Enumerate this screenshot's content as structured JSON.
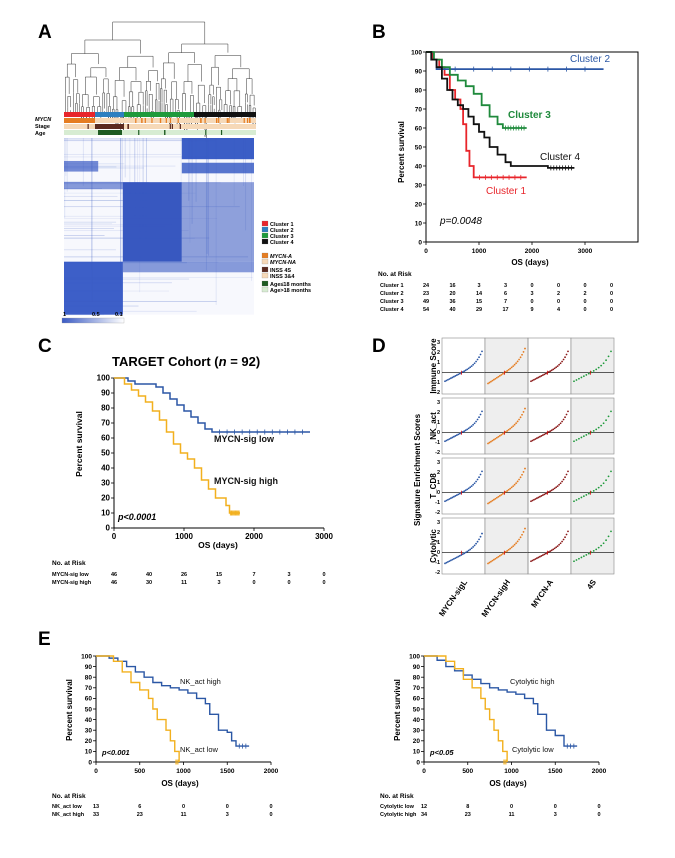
{
  "panels": [
    {
      "letter": "A"
    },
    {
      "letter": "B"
    },
    {
      "letter": "C"
    },
    {
      "letter": "D"
    },
    {
      "letter": "E"
    }
  ],
  "panelA": {
    "row_labels": [
      "MYCN",
      "Stage",
      "Age"
    ],
    "legend": [
      "Cluster 1",
      "Cluster 2",
      "Cluster 3",
      "Cluster 4",
      "MYCN-A",
      "MYCN-NA",
      "INSS 4S",
      "INSS 3&4",
      "Age≤18 months",
      "Age>18 months"
    ],
    "legend_colors": [
      "#e8252b",
      "#2d7fc0",
      "#1f9a3c",
      "#111111",
      "#e57d22",
      "#f6d9b8",
      "#5b2a1f",
      "#f6d9b8",
      "#1e5b22",
      "#d7ecd2"
    ],
    "scale_labels": [
      "1",
      "0.5",
      "0.1"
    ]
  },
  "panelB": {
    "ylabel": "Percent survival",
    "xlabel": "OS (days)",
    "pvalue": "p=0.0048",
    "risk_header": "No. at Risk",
    "chart_data": {
      "type": "line",
      "xlim": [
        0,
        4000
      ],
      "ylim": [
        0,
        100
      ],
      "xticks": [
        0,
        1000,
        2000,
        3000
      ],
      "yticks": [
        0,
        10,
        20,
        30,
        40,
        50,
        60,
        70,
        80,
        90,
        100
      ],
      "series": [
        {
          "name": "Cluster 1",
          "color": "#e8252b",
          "points": [
            [
              0,
              100
            ],
            [
              120,
              96
            ],
            [
              250,
              92
            ],
            [
              350,
              88
            ],
            [
              450,
              80
            ],
            [
              550,
              75
            ],
            [
              650,
              70
            ],
            [
              700,
              62
            ],
            [
              760,
              48
            ],
            [
              820,
              40
            ],
            [
              900,
              34
            ],
            [
              1900,
              34
            ]
          ]
        },
        {
          "name": "Cluster 2",
          "color": "#2b57a5",
          "points": [
            [
              0,
              100
            ],
            [
              100,
              96
            ],
            [
              200,
              91
            ],
            [
              3350,
              91
            ]
          ]
        },
        {
          "name": "Cluster 3",
          "color": "#1f8a3c",
          "points": [
            [
              0,
              100
            ],
            [
              150,
              96
            ],
            [
              300,
              92
            ],
            [
              450,
              88
            ],
            [
              600,
              85
            ],
            [
              750,
              82
            ],
            [
              900,
              78
            ],
            [
              1050,
              72
            ],
            [
              1200,
              66
            ],
            [
              1350,
              62
            ],
            [
              1450,
              60
            ],
            [
              1900,
              60
            ]
          ]
        },
        {
          "name": "Cluster 4",
          "color": "#111111",
          "points": [
            [
              0,
              100
            ],
            [
              100,
              96
            ],
            [
              200,
              92
            ],
            [
              300,
              86
            ],
            [
              400,
              80
            ],
            [
              500,
              75
            ],
            [
              600,
              72
            ],
            [
              700,
              70
            ],
            [
              800,
              66
            ],
            [
              900,
              62
            ],
            [
              1000,
              58
            ],
            [
              1100,
              55
            ],
            [
              1200,
              50
            ],
            [
              1350,
              46
            ],
            [
              1500,
              42
            ],
            [
              1600,
              40
            ],
            [
              2000,
              40
            ],
            [
              2300,
              39
            ],
            [
              2800,
              39
            ]
          ]
        }
      ]
    },
    "curve_labels": [
      {
        "text": "Cluster 2",
        "color": "#2b57a5"
      },
      {
        "text": "Cluster 3",
        "color": "#1f8a3c"
      },
      {
        "text": "Cluster 4",
        "color": "#111111"
      },
      {
        "text": "Cluster 1",
        "color": "#e8252b"
      }
    ],
    "risk_rows": [
      {
        "label": "Cluster 1",
        "values": [
          "24",
          "16",
          "3",
          "3",
          "0",
          "0",
          "0",
          "0"
        ]
      },
      {
        "label": "Cluster 2",
        "values": [
          "23",
          "20",
          "14",
          "6",
          "3",
          "2",
          "2",
          "0"
        ]
      },
      {
        "label": "Cluster 3",
        "values": [
          "49",
          "36",
          "15",
          "7",
          "0",
          "0",
          "0",
          "0"
        ]
      },
      {
        "label": "Cluster 4",
        "values": [
          "54",
          "40",
          "29",
          "17",
          "9",
          "4",
          "0",
          "0"
        ]
      }
    ]
  },
  "panelC": {
    "title_prefix": "TARGET Cohort (",
    "title_n": "n",
    "title_suffix": " = 92)",
    "ylabel": "Percent survival",
    "xlabel": "OS (days)",
    "pvalue": "p<0.0001",
    "risk_header": "No. at Risk",
    "chart_data": {
      "type": "line",
      "xlim": [
        0,
        3000
      ],
      "ylim": [
        0,
        100
      ],
      "xticks": [
        0,
        1000,
        2000,
        3000
      ],
      "yticks": [
        0,
        10,
        20,
        30,
        40,
        50,
        60,
        70,
        80,
        90,
        100
      ],
      "series": [
        {
          "name": "MYCN-sig low",
          "color": "#2b57a5",
          "points": [
            [
              0,
              100
            ],
            [
              200,
              98
            ],
            [
              300,
              96
            ],
            [
              600,
              94
            ],
            [
              700,
              90
            ],
            [
              800,
              86
            ],
            [
              900,
              82
            ],
            [
              1000,
              78
            ],
            [
              1100,
              74
            ],
            [
              1200,
              70
            ],
            [
              1300,
              66
            ],
            [
              1400,
              64
            ],
            [
              2800,
              64
            ]
          ]
        },
        {
          "name": "MYCN-sig high",
          "color": "#f2b01e",
          "points": [
            [
              0,
              100
            ],
            [
              150,
              96
            ],
            [
              250,
              92
            ],
            [
              350,
              88
            ],
            [
              450,
              84
            ],
            [
              550,
              78
            ],
            [
              650,
              72
            ],
            [
              750,
              64
            ],
            [
              850,
              56
            ],
            [
              950,
              50
            ],
            [
              1050,
              46
            ],
            [
              1150,
              40
            ],
            [
              1250,
              32
            ],
            [
              1350,
              26
            ],
            [
              1450,
              20
            ],
            [
              1600,
              15
            ],
            [
              1650,
              10
            ],
            [
              1800,
              10
            ]
          ]
        }
      ]
    },
    "curve_labels": [
      {
        "text": "MYCN-sig low",
        "color": "#111111"
      },
      {
        "text": "MYCN-sig high",
        "color": "#111111"
      }
    ],
    "risk_rows": [
      {
        "label": "MYCN-sig low",
        "values": [
          "46",
          "40",
          "26",
          "15",
          "7",
          "3",
          "0"
        ]
      },
      {
        "label": "MYCN-sig high",
        "values": [
          "46",
          "30",
          "11",
          "3",
          "0",
          "0",
          "0"
        ]
      }
    ]
  },
  "panelD": {
    "ylabel": "Signature Enrichment Scores",
    "rows": [
      "Immune Score",
      "NK_act",
      "T_CD8",
      "Cytolytic"
    ],
    "columns": [
      "MYCN-sigL",
      "MYCN-sigH",
      "MYCN-A",
      "4S"
    ],
    "column_colors": [
      "#2b57a5",
      "#e57d22",
      "#8b1a1a",
      "#1f9a3c"
    ],
    "yticks": [
      "3",
      "2",
      "1",
      "0",
      "-1",
      "-2"
    ]
  },
  "panelE1": {
    "ylabel": "Percent survival",
    "xlabel": "OS (days)",
    "pvalue": "p<0.001",
    "risk_header": "No. at Risk",
    "chart_data": {
      "type": "line",
      "xlim": [
        0,
        2000
      ],
      "ylim": [
        0,
        100
      ],
      "xticks": [
        0,
        500,
        1000,
        1500,
        2000
      ],
      "yticks": [
        0,
        10,
        20,
        30,
        40,
        50,
        60,
        70,
        80,
        90,
        100
      ],
      "series": [
        {
          "name": "NK_act high",
          "color": "#2b57a5",
          "points": [
            [
              0,
              100
            ],
            [
              150,
              98
            ],
            [
              250,
              95
            ],
            [
              350,
              90
            ],
            [
              450,
              85
            ],
            [
              550,
              80
            ],
            [
              650,
              75
            ],
            [
              750,
              72
            ],
            [
              850,
              70
            ],
            [
              950,
              68
            ],
            [
              1050,
              65
            ],
            [
              1150,
              60
            ],
            [
              1250,
              55
            ],
            [
              1300,
              45
            ],
            [
              1400,
              30
            ],
            [
              1500,
              28
            ],
            [
              1550,
              20
            ],
            [
              1600,
              15
            ],
            [
              1750,
              15
            ]
          ]
        },
        {
          "name": "NK_act low",
          "color": "#f2b01e",
          "points": [
            [
              0,
              100
            ],
            [
              200,
              95
            ],
            [
              300,
              85
            ],
            [
              400,
              75
            ],
            [
              500,
              68
            ],
            [
              600,
              60
            ],
            [
              650,
              50
            ],
            [
              700,
              40
            ],
            [
              800,
              30
            ],
            [
              850,
              20
            ],
            [
              900,
              10
            ],
            [
              950,
              0
            ]
          ]
        }
      ]
    },
    "curve_labels": [
      {
        "text": "NK_act high",
        "color": "#111111"
      },
      {
        "text": "NK_act low",
        "color": "#111111"
      }
    ],
    "risk_rows": [
      {
        "label": "NK_act low",
        "values": [
          "13",
          "6",
          "0",
          "0",
          "0"
        ]
      },
      {
        "label": "NK_act high",
        "values": [
          "33",
          "23",
          "11",
          "3",
          "0"
        ]
      }
    ]
  },
  "panelE2": {
    "ylabel": "Percent survival",
    "xlabel": "OS (days)",
    "pvalue": "p<0.05",
    "risk_header": "No. at Risk",
    "chart_data": {
      "type": "line",
      "xlim": [
        0,
        2000
      ],
      "ylim": [
        0,
        100
      ],
      "xticks": [
        0,
        500,
        1000,
        1500,
        2000
      ],
      "yticks": [
        0,
        10,
        20,
        30,
        40,
        50,
        60,
        70,
        80,
        90,
        100
      ],
      "series": [
        {
          "name": "Cytolytic high",
          "color": "#2b57a5",
          "points": [
            [
              0,
              100
            ],
            [
              150,
              96
            ],
            [
              250,
              90
            ],
            [
              350,
              86
            ],
            [
              450,
              82
            ],
            [
              550,
              78
            ],
            [
              650,
              74
            ],
            [
              750,
              70
            ],
            [
              850,
              68
            ],
            [
              950,
              66
            ],
            [
              1050,
              64
            ],
            [
              1150,
              60
            ],
            [
              1250,
              55
            ],
            [
              1300,
              45
            ],
            [
              1400,
              30
            ],
            [
              1500,
              25
            ],
            [
              1600,
              15
            ],
            [
              1750,
              15
            ]
          ]
        },
        {
          "name": "Cytolytic low",
          "color": "#f2b01e",
          "points": [
            [
              0,
              100
            ],
            [
              250,
              95
            ],
            [
              350,
              88
            ],
            [
              450,
              78
            ],
            [
              550,
              70
            ],
            [
              650,
              60
            ],
            [
              700,
              50
            ],
            [
              750,
              40
            ],
            [
              800,
              30
            ],
            [
              850,
              20
            ],
            [
              900,
              10
            ],
            [
              950,
              0
            ]
          ]
        }
      ]
    },
    "curve_labels": [
      {
        "text": "Cytolytic high",
        "color": "#111111"
      },
      {
        "text": "Cytolytic low",
        "color": "#111111"
      }
    ],
    "risk_rows": [
      {
        "label": "Cytolytic low",
        "values": [
          "12",
          "8",
          "0",
          "0",
          "0"
        ]
      },
      {
        "label": "Cytolytic high",
        "values": [
          "34",
          "23",
          "11",
          "3",
          "0"
        ]
      }
    ]
  }
}
